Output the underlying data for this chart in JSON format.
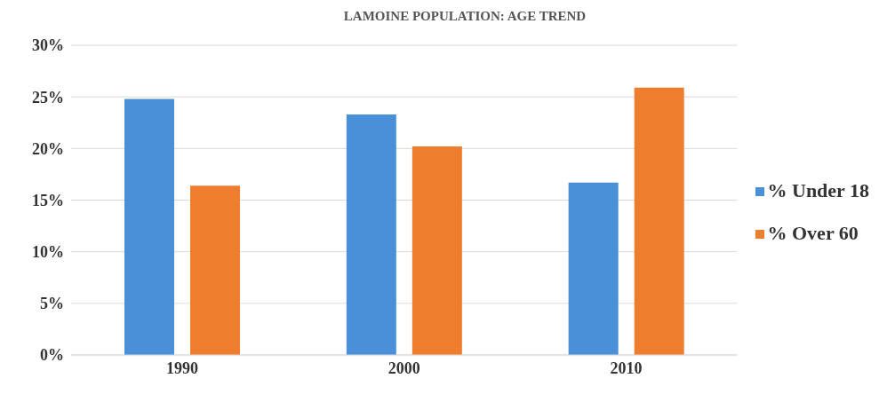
{
  "chart_data": {
    "type": "bar",
    "title": "LAMOINE POPULATION: AGE TREND",
    "categories": [
      "1990",
      "2000",
      "2010"
    ],
    "series": [
      {
        "name": "% Under 18",
        "color": "#4a90d9",
        "values": [
          24.8,
          23.3,
          16.7
        ]
      },
      {
        "name": "% Over 60",
        "color": "#ee7d2e",
        "values": [
          16.4,
          20.2,
          25.9
        ]
      }
    ],
    "ylim": [
      0,
      30
    ],
    "yticks": [
      {
        "value": 0,
        "label": "0%"
      },
      {
        "value": 5,
        "label": "5%"
      },
      {
        "value": 10,
        "label": "10%"
      },
      {
        "value": 15,
        "label": "15%"
      },
      {
        "value": 20,
        "label": "20%"
      },
      {
        "value": 25,
        "label": "25%"
      },
      {
        "value": 30,
        "label": "30%"
      }
    ],
    "grid": "y",
    "legend": "right"
  }
}
